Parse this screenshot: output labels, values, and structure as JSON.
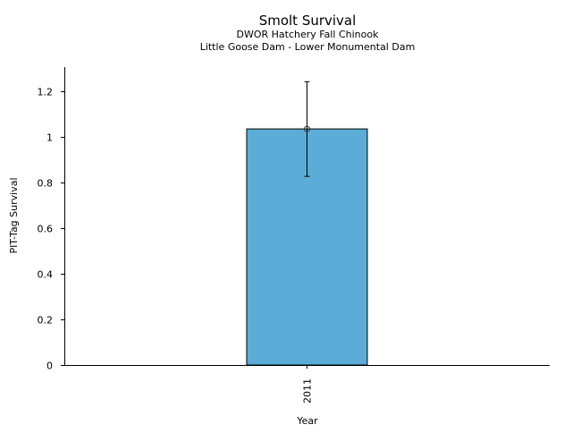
{
  "chart_data": {
    "type": "bar",
    "title": "Smolt Survival",
    "subtitle_lines": [
      "DWOR Hatchery Fall Chinook",
      "Little Goose Dam - Lower Monumental Dam"
    ],
    "xlabel": "Year",
    "ylabel": "PIT-Tag Survival",
    "categories": [
      "2011"
    ],
    "values": [
      1.035
    ],
    "error_lower": [
      0.827
    ],
    "error_upper": [
      1.242
    ],
    "ylim": [
      0,
      1.306
    ],
    "yticks": [
      0,
      0.2,
      0.4,
      0.6,
      0.8,
      1,
      1.2
    ],
    "ytick_labels": [
      "0",
      "0.2",
      "0.4",
      "0.6",
      "0.8",
      "1",
      "1.2"
    ],
    "grid": false,
    "bar_color": "#5BACD6",
    "edge_color": "#000000"
  }
}
